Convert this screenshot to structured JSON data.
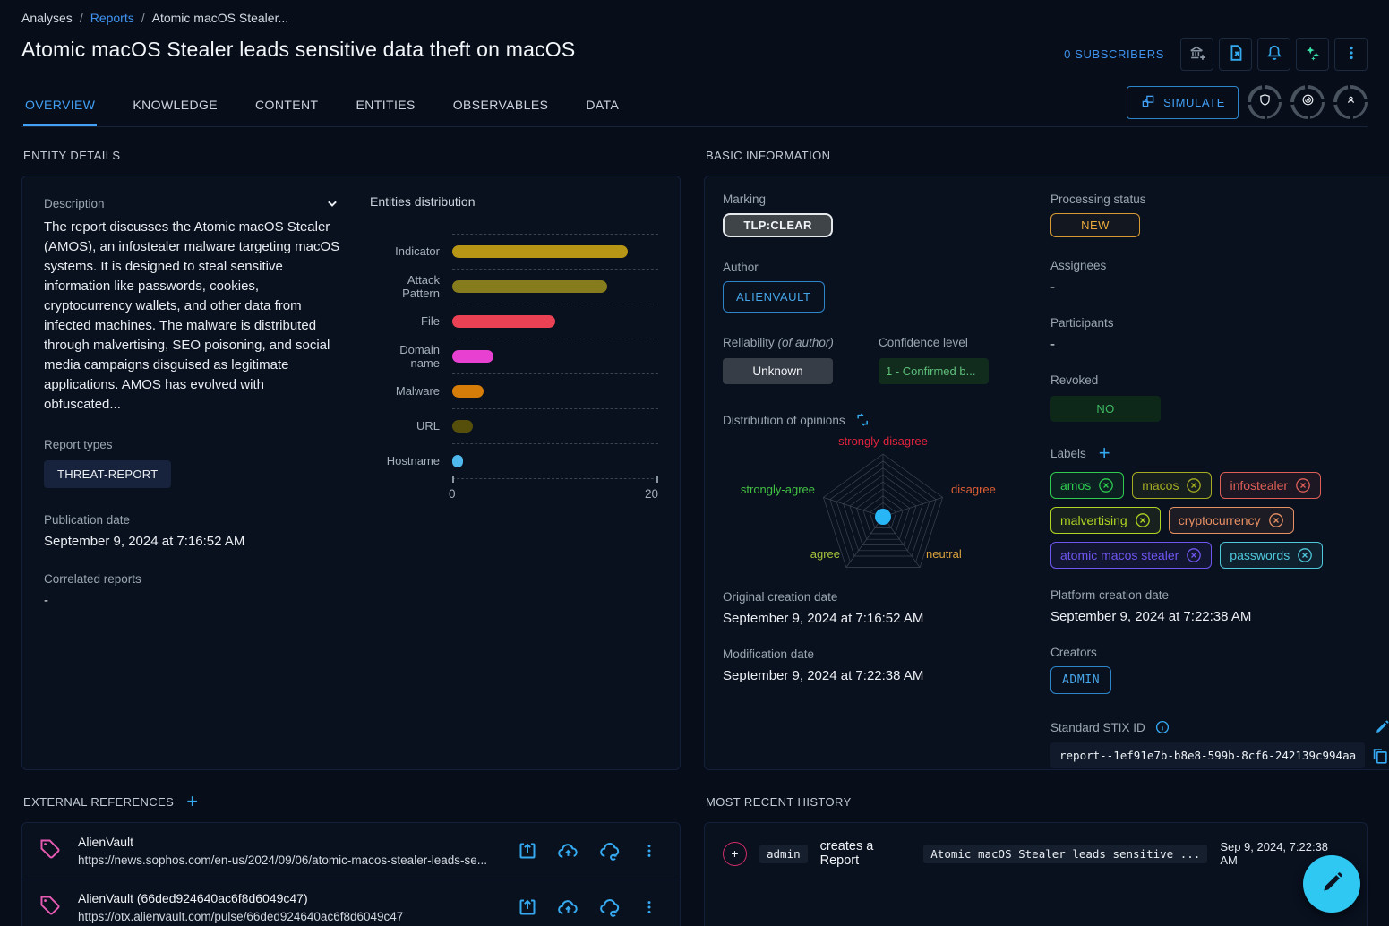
{
  "breadcrumb": {
    "analyses": "Analyses",
    "reports": "Reports",
    "current": "Atomic macOS Stealer...",
    "separator": "/"
  },
  "header": {
    "title": "Atomic macOS Stealer leads sensitive data theft on macOS",
    "subscribers": "0 SUBSCRIBERS",
    "simulate_label": "SIMULATE"
  },
  "tabs": [
    {
      "label": "OVERVIEW",
      "active": true
    },
    {
      "label": "KNOWLEDGE"
    },
    {
      "label": "CONTENT"
    },
    {
      "label": "ENTITIES"
    },
    {
      "label": "OBSERVABLES"
    },
    {
      "label": "DATA"
    }
  ],
  "entity_details": {
    "section_title": "ENTITY DETAILS",
    "description_label": "Description",
    "description": "The report discusses the Atomic macOS Stealer (AMOS), an infostealer malware targeting macOS systems. It is designed to steal sensitive information like passwords, cookies, cryptocurrency wallets, and other data from infected machines. The malware is distributed through malvertising, SEO poisoning, and social media campaigns disguised as legitimate applications. AMOS has evolved with obfuscated...",
    "report_types_label": "Report types",
    "report_type": "THREAT-REPORT",
    "publication_date_label": "Publication date",
    "publication_date": "September 9, 2024 at 7:16:52 AM",
    "correlated_label": "Correlated reports",
    "correlated_value": "-"
  },
  "chart_data": [
    {
      "type": "bar",
      "title": "Entities distribution",
      "orientation": "horizontal",
      "categories": [
        "Indicator",
        "Attack Pattern",
        "File",
        "Domain name",
        "Malware",
        "URL",
        "Hostname"
      ],
      "values": [
        17,
        15,
        10,
        4,
        3,
        2,
        1
      ],
      "colors": [
        "#b79515",
        "#867c1e",
        "#ea4155",
        "#e840d0",
        "#d57d08",
        "#564f0b",
        "#4fb8ec"
      ],
      "xlim": [
        0,
        20
      ],
      "x_ticks": [
        "0",
        "20"
      ],
      "grid": "dashed"
    },
    {
      "type": "radar",
      "title": "Distribution of opinions",
      "axes": [
        {
          "label": "strongly-disagree",
          "color": "#e0243c"
        },
        {
          "label": "disagree",
          "color": "#dd5e33"
        },
        {
          "label": "neutral",
          "color": "#daa33c"
        },
        {
          "label": "agree",
          "color": "#a8c53c"
        },
        {
          "label": "strongly-agree",
          "color": "#42c142"
        }
      ],
      "values": [
        0,
        0,
        0,
        0,
        0
      ],
      "dot_color": "#29b6f6"
    }
  ],
  "basic_information": {
    "section_title": "BASIC INFORMATION",
    "marking_label": "Marking",
    "marking": "TLP:CLEAR",
    "author_label": "Author",
    "author": "ALIENVAULT",
    "reliability_label": "Reliability",
    "reliability_suffix": "(of author)",
    "reliability": "Unknown",
    "confidence_label": "Confidence level",
    "confidence": "1 - Confirmed b...",
    "opinions_label": "Distribution of opinions",
    "original_creation_label": "Original creation date",
    "original_creation": "September 9, 2024 at 7:16:52 AM",
    "modification_label": "Modification date",
    "modification": "September 9, 2024 at 7:22:38 AM",
    "processing_status_label": "Processing status",
    "processing_status": "NEW",
    "assignees_label": "Assignees",
    "assignees": "-",
    "participants_label": "Participants",
    "participants": "-",
    "revoked_label": "Revoked",
    "revoked": "NO",
    "labels_label": "Labels",
    "labels": [
      {
        "text": "amos",
        "color": "#2ecb4e"
      },
      {
        "text": "macos",
        "color": "#a4ad22"
      },
      {
        "text": "infostealer",
        "color": "#df5f58"
      },
      {
        "text": "malvertising",
        "color": "#b0d424"
      },
      {
        "text": "cryptocurrency",
        "color": "#e79064"
      },
      {
        "text": "atomic macos stealer",
        "color": "#6f55f0"
      },
      {
        "text": "passwords",
        "color": "#4fc8dc"
      }
    ],
    "platform_creation_label": "Platform creation date",
    "platform_creation": "September 9, 2024 at 7:22:38 AM",
    "creators_label": "Creators",
    "creator": "ADMIN",
    "stix_label": "Standard STIX ID",
    "stix_id": "report--1ef91e7b-b8e8-599b-8cf6-242139c994aa"
  },
  "external_references": {
    "section_title": "EXTERNAL REFERENCES",
    "items": [
      {
        "title": "AlienVault",
        "url": "https://news.sophos.com/en-us/2024/09/06/atomic-macos-stealer-leads-se..."
      },
      {
        "title": "AlienVault (66ded924640ac6f8d6049c47)",
        "url": "https://otx.alienvault.com/pulse/66ded924640ac6f8d6049c47"
      }
    ]
  },
  "history": {
    "section_title": "MOST RECENT HISTORY",
    "items": [
      {
        "actor": "admin",
        "action": "creates a Report",
        "target": "Atomic macOS Stealer leads sensitive ...",
        "timestamp": "Sep 9, 2024, 7:22:38 AM"
      }
    ]
  }
}
